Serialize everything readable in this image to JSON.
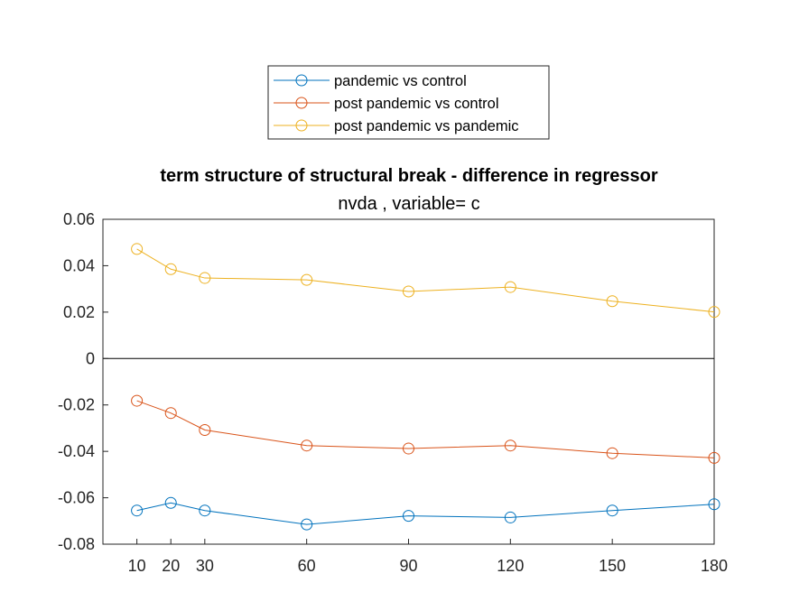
{
  "chart_data": {
    "type": "line",
    "title": "term structure of structural break - difference in regressor",
    "subtitle": "nvda  , variable= c",
    "xlabel": "",
    "ylabel": "",
    "x": [
      10,
      20,
      30,
      60,
      90,
      120,
      150,
      180
    ],
    "xlim": [
      0,
      180
    ],
    "ylim": [
      -0.08,
      0.06
    ],
    "xticks": [
      "10",
      "20",
      "30",
      "60",
      "90",
      "120",
      "150",
      "180"
    ],
    "yticks": [
      "0.06",
      "0.04",
      "0.02",
      "0",
      "-0.02",
      "-0.04",
      "-0.06",
      "-0.08"
    ],
    "zero_line": true,
    "grid": false,
    "legend_position": "top-center",
    "series": [
      {
        "name": "pandemic vs control",
        "color": "#0072BD",
        "values": [
          -0.0655,
          -0.0622,
          -0.0655,
          -0.0715,
          -0.0678,
          -0.0685,
          -0.0655,
          -0.0628
        ]
      },
      {
        "name": "post pandemic vs control",
        "color": "#D95319",
        "values": [
          -0.0182,
          -0.0235,
          -0.0308,
          -0.0375,
          -0.0388,
          -0.0375,
          -0.0408,
          -0.0428
        ]
      },
      {
        "name": "post pandemic vs pandemic",
        "color": "#EDB120",
        "values": [
          0.0472,
          0.0385,
          0.0347,
          0.0339,
          0.0289,
          0.0308,
          0.0247,
          0.0201
        ]
      }
    ]
  }
}
